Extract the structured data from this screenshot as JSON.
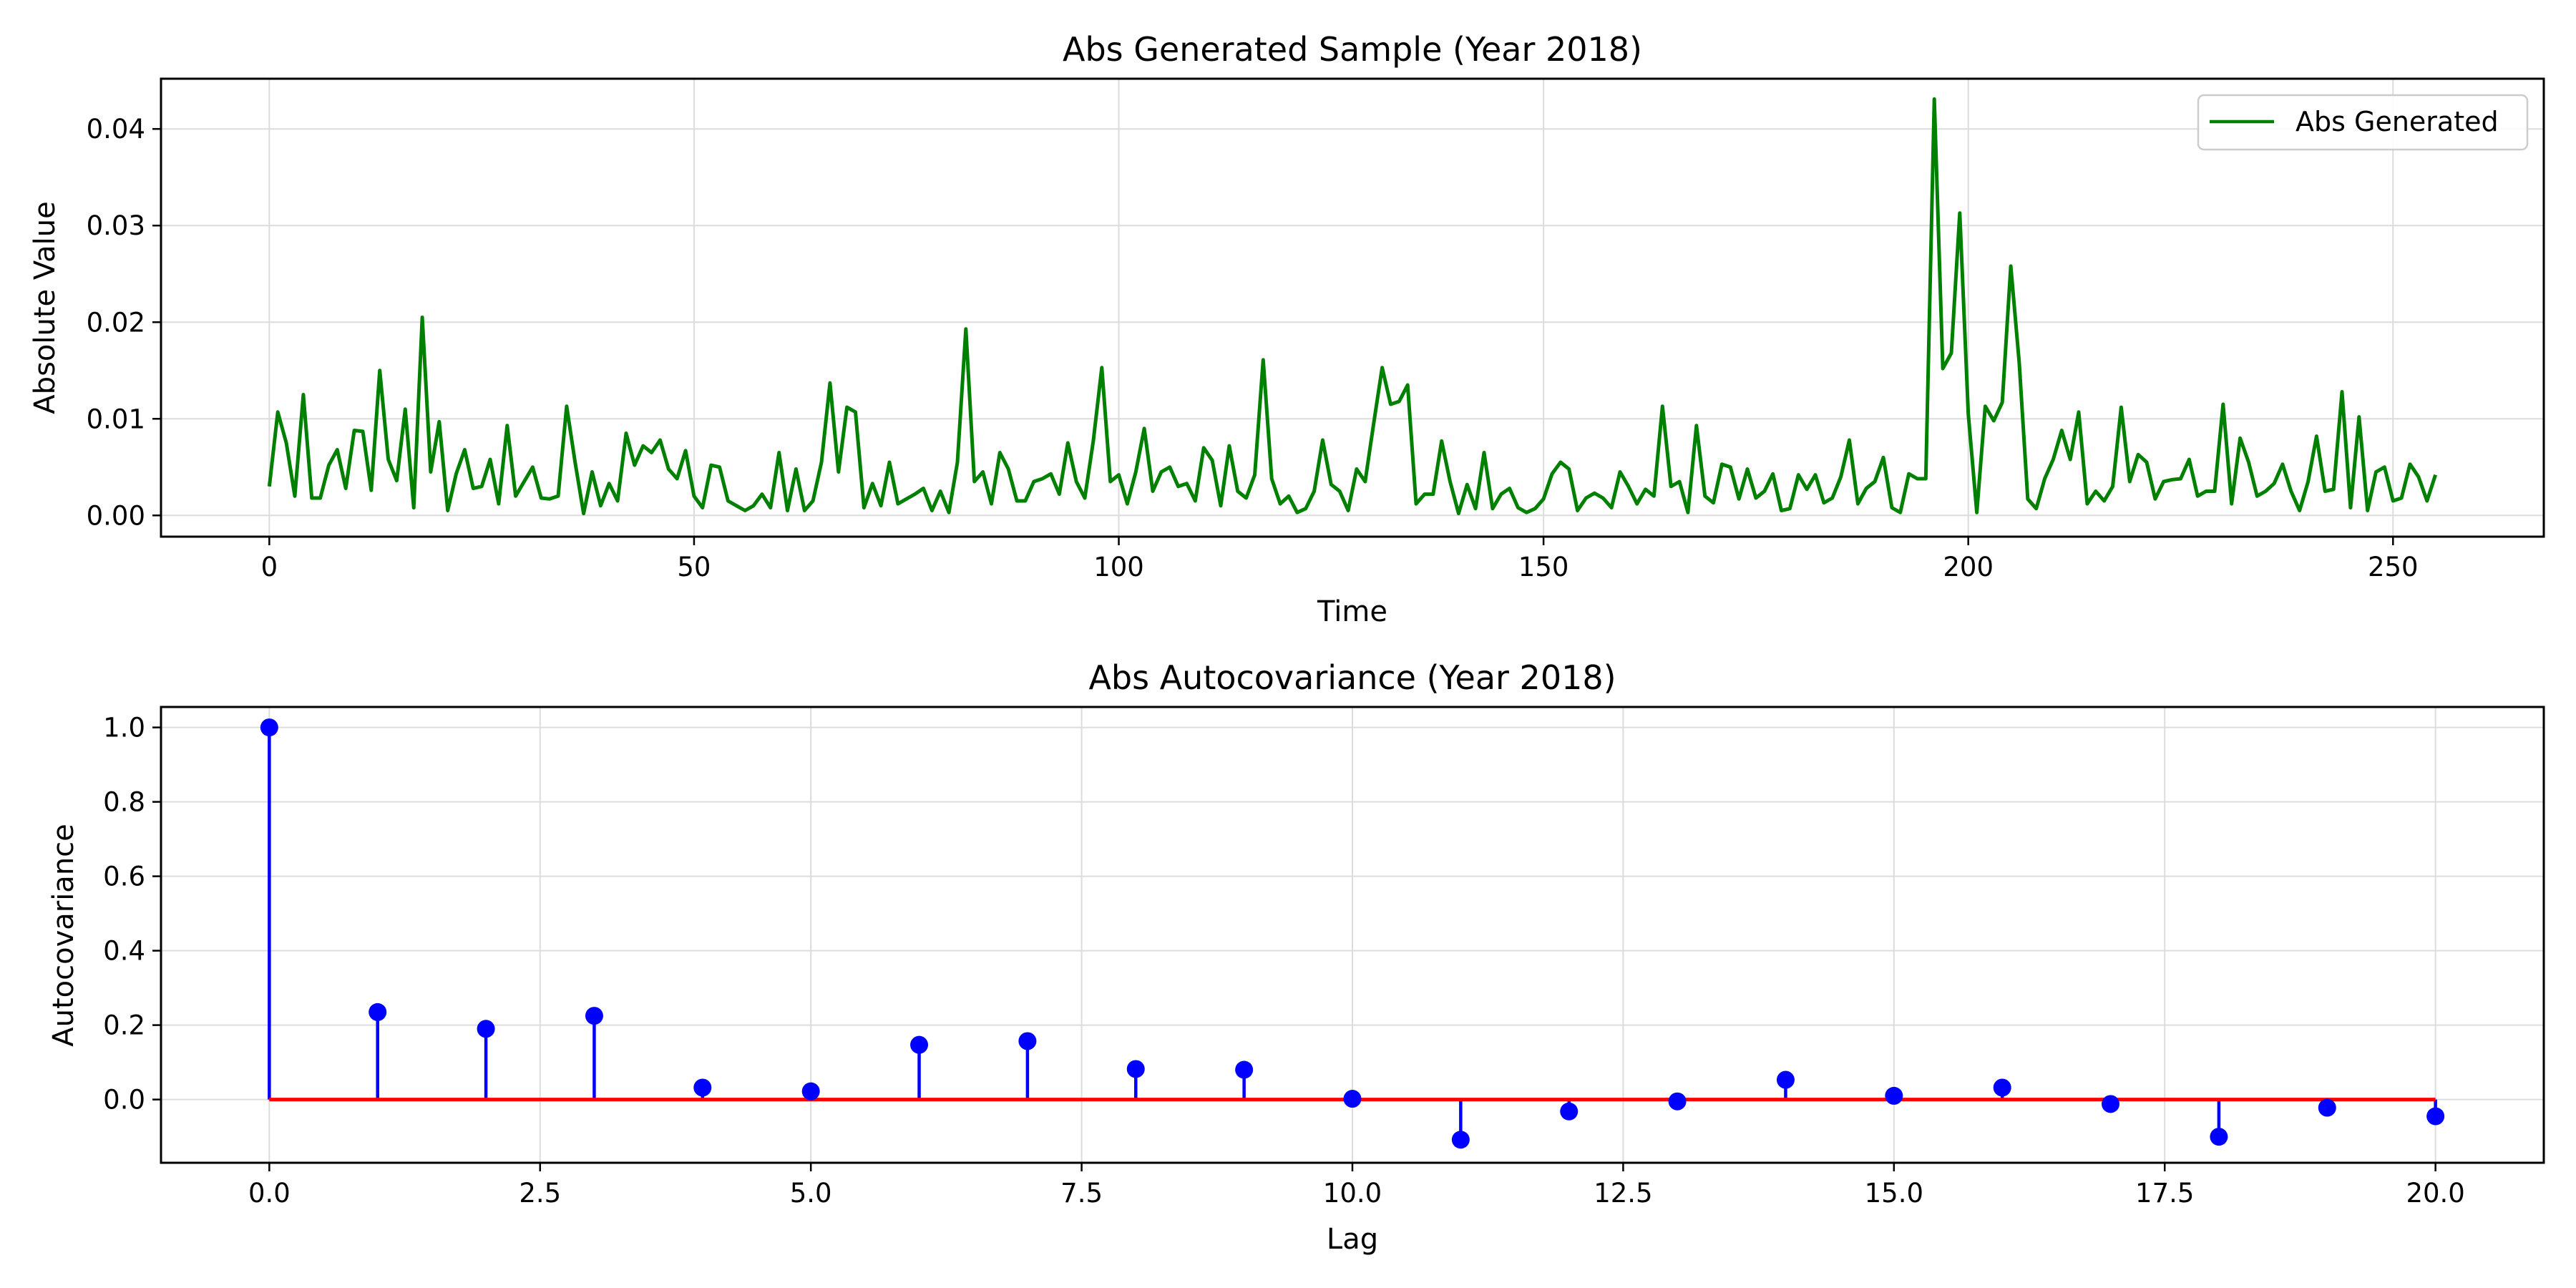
{
  "colors": {
    "line": "#008000",
    "stem": "#0000ff",
    "marker": "#0000ff",
    "baseline": "#ff0000",
    "grid": "#dcdcdc",
    "axes": "#000000"
  },
  "chart_data": [
    {
      "type": "line",
      "title": "Abs Generated Sample (Year 2018)",
      "xlabel": "Time",
      "ylabel": "Absolute Value",
      "xlim": [
        -12.75,
        267.75
      ],
      "ylim": [
        -0.0022,
        0.0452
      ],
      "xticks": [
        0,
        50,
        100,
        150,
        200,
        250
      ],
      "xtick_labels": [
        "0",
        "50",
        "100",
        "150",
        "200",
        "250"
      ],
      "yticks": [
        0.0,
        0.01,
        0.02,
        0.03,
        0.04
      ],
      "ytick_labels": [
        "0.00",
        "0.01",
        "0.02",
        "0.03",
        "0.04"
      ],
      "grid": true,
      "legend": {
        "placement": "top-right",
        "entries": [
          "Abs Generated"
        ]
      },
      "series": [
        {
          "name": "Abs Generated",
          "color": "#008000",
          "x_start": 0,
          "x_step": 1,
          "values": [
            0.003,
            0.0107,
            0.0075,
            0.002,
            0.0125,
            0.0018,
            0.0018,
            0.0052,
            0.0068,
            0.0028,
            0.0088,
            0.0087,
            0.0026,
            0.015,
            0.0058,
            0.0036,
            0.011,
            0.0008,
            0.0205,
            0.0045,
            0.0097,
            0.0005,
            0.0043,
            0.0068,
            0.0028,
            0.003,
            0.0058,
            0.0012,
            0.0093,
            0.002,
            0.0035,
            0.005,
            0.0018,
            0.0017,
            0.002,
            0.0113,
            0.0055,
            0.0002,
            0.0045,
            0.001,
            0.0033,
            0.0015,
            0.0085,
            0.0052,
            0.0072,
            0.0065,
            0.0078,
            0.0048,
            0.0038,
            0.0067,
            0.002,
            0.0008,
            0.0052,
            0.005,
            0.0015,
            0.001,
            0.0005,
            0.001,
            0.0022,
            0.0008,
            0.0065,
            0.0005,
            0.0048,
            0.0005,
            0.0015,
            0.0055,
            0.0137,
            0.0045,
            0.0112,
            0.0107,
            0.0008,
            0.0033,
            0.001,
            0.0055,
            0.0012,
            0.0017,
            0.0022,
            0.0028,
            0.0005,
            0.0025,
            0.0003,
            0.0055,
            0.0193,
            0.0035,
            0.0045,
            0.0012,
            0.0065,
            0.0048,
            0.0015,
            0.0015,
            0.0035,
            0.0038,
            0.0043,
            0.0022,
            0.0075,
            0.0035,
            0.0018,
            0.0077,
            0.0153,
            0.0035,
            0.0042,
            0.0012,
            0.0045,
            0.009,
            0.0025,
            0.0045,
            0.005,
            0.003,
            0.0033,
            0.0015,
            0.007,
            0.0057,
            0.001,
            0.0072,
            0.0025,
            0.0018,
            0.0042,
            0.0161,
            0.0038,
            0.0012,
            0.002,
            0.0003,
            0.0007,
            0.0025,
            0.0078,
            0.0032,
            0.0025,
            0.0005,
            0.0048,
            0.0035,
            0.0095,
            0.0153,
            0.0115,
            0.0118,
            0.0135,
            0.0012,
            0.0022,
            0.0022,
            0.0077,
            0.0035,
            0.0002,
            0.0032,
            0.0007,
            0.0065,
            0.0007,
            0.0022,
            0.0028,
            0.0008,
            0.0003,
            0.0007,
            0.0017,
            0.0043,
            0.0055,
            0.0048,
            0.0005,
            0.0018,
            0.0023,
            0.0018,
            0.0008,
            0.0045,
            0.003,
            0.0012,
            0.0027,
            0.002,
            0.0113,
            0.003,
            0.0035,
            0.0003,
            0.0093,
            0.002,
            0.0013,
            0.0053,
            0.005,
            0.0017,
            0.0048,
            0.0018,
            0.0025,
            0.0043,
            0.0005,
            0.0007,
            0.0042,
            0.0027,
            0.0042,
            0.0013,
            0.0018,
            0.004,
            0.0078,
            0.0012,
            0.0028,
            0.0035,
            0.006,
            0.0008,
            0.0003,
            0.0043,
            0.0038,
            0.0038,
            0.0431,
            0.0152,
            0.0168,
            0.0313,
            0.0105,
            0.0003,
            0.0113,
            0.0098,
            0.0117,
            0.0258,
            0.0158,
            0.0017,
            0.0007,
            0.0038,
            0.0058,
            0.0088,
            0.0058,
            0.0107,
            0.0012,
            0.0025,
            0.0015,
            0.003,
            0.0112,
            0.0035,
            0.0063,
            0.0055,
            0.0017,
            0.0035,
            0.0037,
            0.0038,
            0.0058,
            0.002,
            0.0025,
            0.0025,
            0.0115,
            0.0012,
            0.008,
            0.0055,
            0.002,
            0.0025,
            0.0033,
            0.0053,
            0.0025,
            0.0005,
            0.0035,
            0.0082,
            0.0025,
            0.0027,
            0.0128,
            0.0008,
            0.0102,
            0.0005,
            0.0045,
            0.005,
            0.0015,
            0.0018,
            0.0053,
            0.004,
            0.0015,
            0.0042
          ]
        }
      ]
    },
    {
      "type": "stem",
      "title": "Abs Autocovariance (Year 2018)",
      "xlabel": "Lag",
      "ylabel": "Autocovariance",
      "xlim": [
        -1.0,
        21.0
      ],
      "ylim": [
        -0.17,
        1.055
      ],
      "xticks": [
        0.0,
        2.5,
        5.0,
        7.5,
        10.0,
        12.5,
        15.0,
        17.5,
        20.0
      ],
      "xtick_labels": [
        "0.0",
        "2.5",
        "5.0",
        "7.5",
        "10.0",
        "12.5",
        "15.0",
        "17.5",
        "20.0"
      ],
      "yticks": [
        0.0,
        0.2,
        0.4,
        0.6,
        0.8,
        1.0
      ],
      "ytick_labels": [
        "0.0",
        "0.2",
        "0.4",
        "0.6",
        "0.8",
        "1.0"
      ],
      "grid": true,
      "baseline": 0.0,
      "x": [
        0,
        1,
        2,
        3,
        4,
        5,
        6,
        7,
        8,
        9,
        10,
        11,
        12,
        13,
        14,
        15,
        16,
        17,
        18,
        19,
        20
      ],
      "values": [
        1.0,
        0.235,
        0.19,
        0.225,
        0.032,
        0.022,
        0.147,
        0.157,
        0.082,
        0.08,
        0.002,
        -0.108,
        -0.032,
        -0.005,
        0.053,
        0.01,
        0.032,
        -0.012,
        -0.1,
        -0.022,
        -0.045
      ]
    }
  ]
}
